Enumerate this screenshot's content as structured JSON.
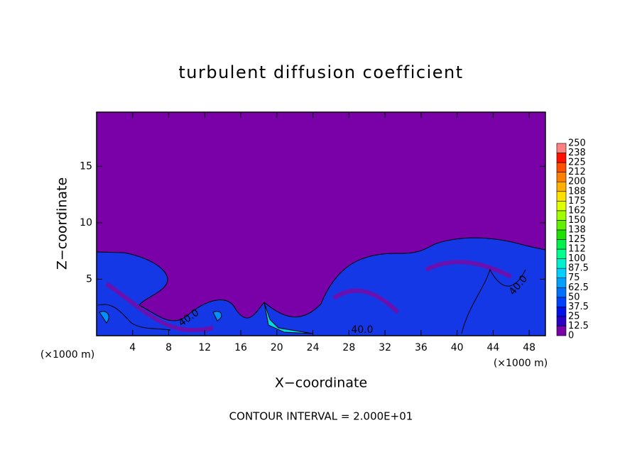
{
  "chart_data": {
    "type": "contour",
    "title": "turbulent diffusion coefficient",
    "x_label": "X−coordinate",
    "y_label": "Z−coordinate",
    "x_unit": "(×1000 m)",
    "y_unit": "(×1000 m)",
    "footer": "CONTOUR INTERVAL = 2.000E+01",
    "annotations": [
      "40.0",
      "40.0",
      "40.0"
    ],
    "xlim": [
      0,
      49.8
    ],
    "xticks": [
      4,
      8,
      12,
      16,
      20,
      24,
      28,
      32,
      36,
      40,
      44,
      48
    ],
    "ylim": [
      0,
      19.8
    ],
    "yticks": [
      5,
      10,
      15
    ],
    "levels": [
      0,
      12.5,
      25,
      37.5,
      50,
      62.5,
      75,
      87.5,
      100,
      112,
      125,
      138,
      150,
      162,
      175,
      188,
      200,
      212,
      225,
      238,
      250
    ],
    "colors": [
      "#7a00a8",
      "#2a00c8",
      "#0010e8",
      "#0040ff",
      "#0070ff",
      "#00a0ff",
      "#00d0ff",
      "#00f0d0",
      "#00ff90",
      "#00f050",
      "#20e000",
      "#60f000",
      "#a0ff00",
      "#e0ff00",
      "#ffe000",
      "#ffb000",
      "#ff8000",
      "#ff5000",
      "#ff1000",
      "#ff8080"
    ]
  }
}
